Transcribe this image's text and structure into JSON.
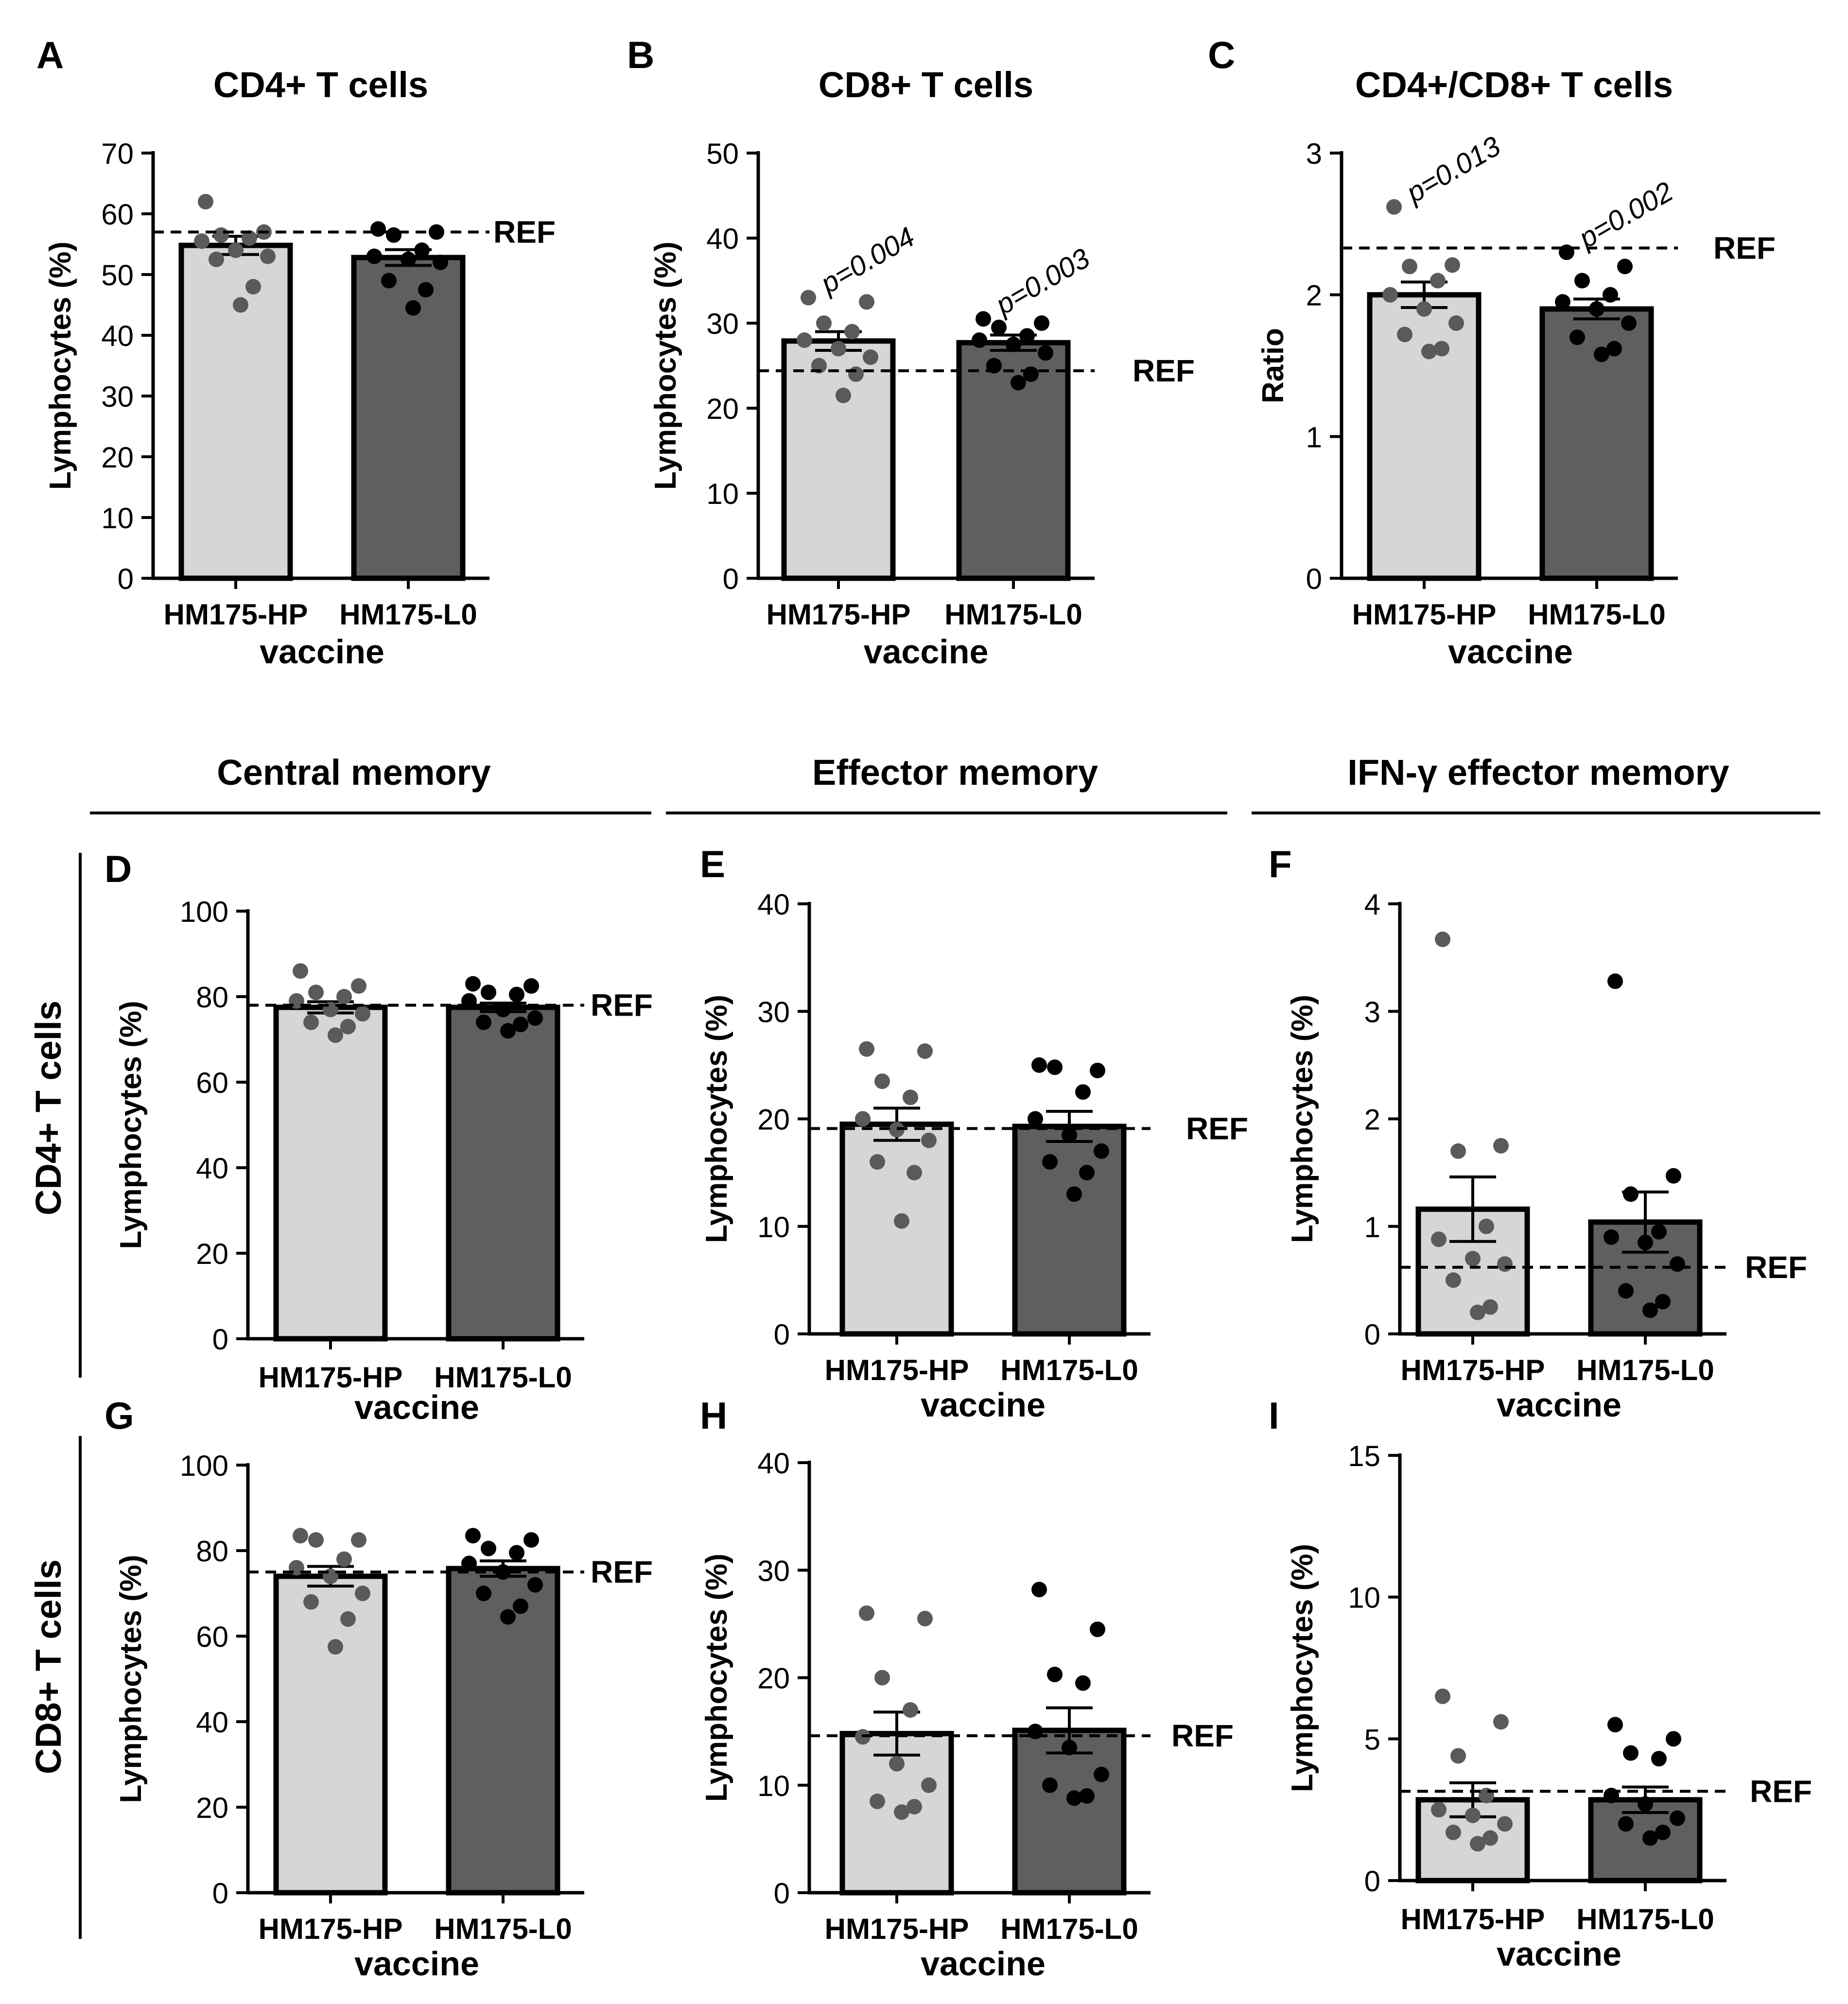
{
  "figure": {
    "section_headers": [
      "Central memory",
      "Effector memory",
      "IFN-γ effector memory"
    ],
    "row_labels": [
      "CD4+ T cells",
      "CD8+ T cells"
    ]
  },
  "chart_data": [
    {
      "panel": "A",
      "type": "bar",
      "title": "CD4+ T cells",
      "xlabel": "vaccine",
      "ylabel": "Lymphocytes (%)",
      "ylim": [
        0,
        70
      ],
      "yticks": [
        0,
        10,
        20,
        30,
        40,
        50,
        60,
        70
      ],
      "ytick_labels": [
        "0",
        "10",
        "20",
        "30",
        "40",
        "50",
        "60",
        "70"
      ],
      "categories": [
        "HM175-HP",
        "HM175-L0"
      ],
      "values": [
        54.8,
        52.8
      ],
      "sem": [
        1.5,
        1.3
      ],
      "points": [
        [
          62,
          57,
          56.5,
          56,
          55.5,
          54,
          53,
          52.5,
          48,
          45
        ],
        [
          57.5,
          57,
          56.5,
          54,
          53,
          52.5,
          52,
          49,
          47.5,
          44.5
        ]
      ],
      "reference": {
        "label": "REF",
        "value": 57
      },
      "annotations": []
    },
    {
      "panel": "B",
      "type": "bar",
      "title": "CD8+ T cells",
      "xlabel": "vaccine",
      "ylabel": "Lymphocytes (%)",
      "ylim": [
        0,
        50
      ],
      "yticks": [
        0,
        10,
        20,
        30,
        40,
        50
      ],
      "ytick_labels": [
        "0",
        "10",
        "20",
        "30",
        "40",
        "50"
      ],
      "categories": [
        "HM175-HP",
        "HM175-L0"
      ],
      "values": [
        27.9,
        27.7
      ],
      "sem": [
        1.1,
        0.9
      ],
      "points": [
        [
          33,
          32.5,
          30,
          29,
          28,
          27,
          26,
          25,
          24,
          21.5
        ],
        [
          30.5,
          30,
          29.5,
          28.5,
          28,
          27.5,
          26.5,
          25,
          24,
          23
        ]
      ],
      "reference": {
        "label": "REF",
        "value": 24.4
      },
      "annotations": [
        "p=0.004",
        "p=0.003"
      ]
    },
    {
      "panel": "C",
      "type": "bar",
      "title": "CD4+/CD8+ T cells",
      "xlabel": "vaccine",
      "ylabel": "Ratio",
      "ylim": [
        0,
        3
      ],
      "yticks": [
        0,
        1,
        2,
        3
      ],
      "ytick_labels": [
        "0",
        "1",
        "2",
        "3"
      ],
      "categories": [
        "HM175-HP",
        "HM175-L0"
      ],
      "values": [
        2.0,
        1.9
      ],
      "sem": [
        0.09,
        0.07
      ],
      "points": [
        [
          2.62,
          2.21,
          2.2,
          2.1,
          2.0,
          1.9,
          1.8,
          1.72,
          1.62,
          1.6
        ],
        [
          2.3,
          2.2,
          2.1,
          2.0,
          1.95,
          1.9,
          1.8,
          1.7,
          1.62,
          1.58
        ]
      ],
      "reference": {
        "label": "REF",
        "value": 2.33
      },
      "annotations": [
        "p=0.013",
        "p=0.002"
      ]
    },
    {
      "panel": "D",
      "type": "bar",
      "title": "",
      "xlabel": "vaccine",
      "ylabel": "Lymphocytes (%)",
      "ylim": [
        0,
        100
      ],
      "yticks": [
        0,
        20,
        40,
        60,
        80,
        100
      ],
      "ytick_labels": [
        "0",
        "20",
        "40",
        "60",
        "80",
        "100"
      ],
      "categories": [
        "HM175-HP",
        "HM175-L0"
      ],
      "values": [
        77.5,
        77.5
      ],
      "sem": [
        1.3,
        1.0
      ],
      "points": [
        [
          86,
          82.5,
          81,
          80,
          79,
          77,
          76,
          74,
          73,
          71
        ],
        [
          83,
          82.5,
          81,
          80.5,
          79,
          77,
          75,
          74,
          73.5,
          72
        ]
      ],
      "reference": {
        "label": "REF",
        "value": 78
      },
      "annotations": []
    },
    {
      "panel": "E",
      "type": "bar",
      "title": "",
      "xlabel": "vaccine",
      "ylabel": "Lymphocytes (%)",
      "ylim": [
        0,
        40
      ],
      "yticks": [
        0,
        10,
        20,
        30,
        40
      ],
      "ytick_labels": [
        "0",
        "10",
        "20",
        "30",
        "40"
      ],
      "categories": [
        "HM175-HP",
        "HM175-L0"
      ],
      "values": [
        19.5,
        19.3
      ],
      "sem": [
        1.5,
        1.4
      ],
      "points": [
        [
          26.5,
          26.3,
          23.5,
          22,
          20,
          19,
          18,
          16,
          15,
          10.5
        ],
        [
          25,
          24.5,
          24.8,
          22.5,
          20,
          18.5,
          17,
          16,
          15,
          13
        ]
      ],
      "reference": {
        "label": "REF",
        "value": 19.1
      },
      "annotations": []
    },
    {
      "panel": "F",
      "type": "bar",
      "title": "",
      "xlabel": "vaccine",
      "ylabel": "Lymphocytes (%)",
      "ylim": [
        0,
        4
      ],
      "yticks": [
        0,
        1,
        2,
        3,
        4
      ],
      "ytick_labels": [
        "0",
        "1",
        "2",
        "3",
        "4"
      ],
      "categories": [
        "HM175-HP",
        "HM175-L0"
      ],
      "values": [
        1.16,
        1.04
      ],
      "sem": [
        0.3,
        0.28
      ],
      "points": [
        [
          3.67,
          1.75,
          1.7,
          1.0,
          0.88,
          0.7,
          0.65,
          0.5,
          0.25,
          0.2
        ],
        [
          3.28,
          1.47,
          1.3,
          0.95,
          0.9,
          0.85,
          0.65,
          0.4,
          0.3,
          0.22
        ]
      ],
      "reference": {
        "label": "REF",
        "value": 0.62
      },
      "annotations": []
    },
    {
      "panel": "G",
      "type": "bar",
      "title": "",
      "xlabel": "vaccine",
      "ylabel": "Lymphocytes (%)",
      "ylim": [
        0,
        100
      ],
      "yticks": [
        0,
        20,
        40,
        60,
        80,
        100
      ],
      "ytick_labels": [
        "0",
        "20",
        "40",
        "60",
        "80",
        "100"
      ],
      "categories": [
        "HM175-HP",
        "HM175-L0"
      ],
      "values": [
        74,
        75.8
      ],
      "sem": [
        2.3,
        1.8
      ],
      "points": [
        [
          83.5,
          82.5,
          82.5,
          78,
          76,
          74,
          70,
          68,
          64,
          57.5
        ],
        [
          83.5,
          82.5,
          80.5,
          79.5,
          77,
          75,
          72,
          70,
          67,
          64.5
        ]
      ],
      "reference": {
        "label": "REF",
        "value": 75
      },
      "annotations": []
    },
    {
      "panel": "H",
      "type": "bar",
      "title": "",
      "xlabel": "vaccine",
      "ylabel": "Lymphocytes (%)",
      "ylim": [
        0,
        40
      ],
      "yticks": [
        0,
        10,
        20,
        30,
        40
      ],
      "ytick_labels": [
        "0",
        "10",
        "20",
        "30",
        "40"
      ],
      "categories": [
        "HM175-HP",
        "HM175-L0"
      ],
      "values": [
        14.8,
        15.1
      ],
      "sem": [
        2.0,
        2.1
      ],
      "points": [
        [
          26,
          25.5,
          20,
          17,
          14.5,
          12,
          10,
          8.5,
          8,
          7.5
        ],
        [
          28.2,
          24.5,
          20.3,
          19.5,
          15,
          13.5,
          11,
          10,
          9,
          8.8
        ]
      ],
      "reference": {
        "label": "REF",
        "value": 14.6
      },
      "annotations": []
    },
    {
      "panel": "I",
      "type": "bar",
      "title": "",
      "xlabel": "vaccine",
      "ylabel": "Lymphocytes (%)",
      "ylim": [
        0,
        15
      ],
      "yticks": [
        0,
        5,
        10,
        15
      ],
      "ytick_labels": [
        "0",
        "5",
        "10",
        "15"
      ],
      "categories": [
        "HM175-HP",
        "HM175-L0"
      ],
      "values": [
        2.85,
        2.85
      ],
      "sem": [
        0.6,
        0.45
      ],
      "points": [
        [
          6.5,
          5.6,
          4.4,
          3.0,
          2.5,
          2.3,
          2.0,
          1.7,
          1.5,
          1.3
        ],
        [
          5.5,
          5.0,
          4.5,
          4.3,
          3.0,
          2.7,
          2.2,
          2.0,
          1.7,
          1.5
        ]
      ],
      "reference": {
        "label": "REF",
        "value": 3.15
      },
      "annotations": []
    }
  ]
}
